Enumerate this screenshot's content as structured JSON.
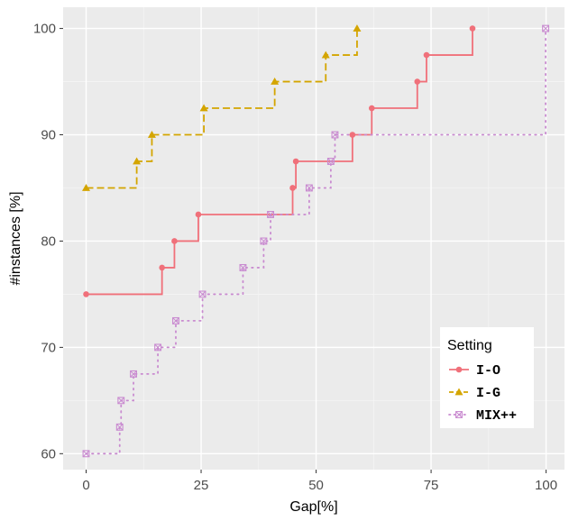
{
  "chart_data": {
    "type": "line",
    "step": true,
    "title": "",
    "xlabel": "Gap[%]",
    "ylabel": "#instances [%]",
    "xlim": [
      -5,
      104
    ],
    "ylim": [
      58.5,
      102
    ],
    "x_ticks": [
      0,
      25,
      50,
      75,
      100
    ],
    "y_ticks": [
      60,
      70,
      80,
      90,
      100
    ],
    "x_tick_labels": [
      "0",
      "25",
      "50",
      "75",
      "100"
    ],
    "y_tick_labels": [
      "60",
      "70",
      "80",
      "90",
      "100"
    ],
    "grid": true,
    "legend": {
      "title": "Setting",
      "position": "bottom-right"
    },
    "series": [
      {
        "name": "I-O",
        "color": "#f0707a",
        "line": "solid",
        "marker": "circle",
        "x": [
          0,
          16.5,
          19.2,
          24.4,
          44.9,
          45.6,
          57.9,
          62.1,
          72,
          74,
          84
        ],
        "y": [
          75,
          77.5,
          80,
          82.5,
          85,
          87.5,
          90,
          92.5,
          95,
          97.5,
          100
        ]
      },
      {
        "name": "I-G",
        "color": "#d4a500",
        "line": "dashed",
        "marker": "triangle",
        "x": [
          0,
          11,
          14.3,
          25.6,
          41,
          52.1,
          58.9
        ],
        "y": [
          85,
          87.5,
          90,
          92.5,
          95,
          97.5,
          100
        ]
      },
      {
        "name": "MIX++",
        "color": "#c98bd0",
        "line": "dotted",
        "marker": "square-x",
        "x": [
          0,
          7.3,
          7.6,
          10.3,
          15.6,
          19.5,
          25.3,
          34.1,
          38.6,
          40.1,
          48.5,
          53.2,
          54.1,
          99.9
        ],
        "y": [
          60,
          62.5,
          65,
          67.5,
          70,
          72.5,
          75,
          77.5,
          80,
          82.5,
          85,
          87.5,
          90,
          100
        ]
      }
    ]
  }
}
